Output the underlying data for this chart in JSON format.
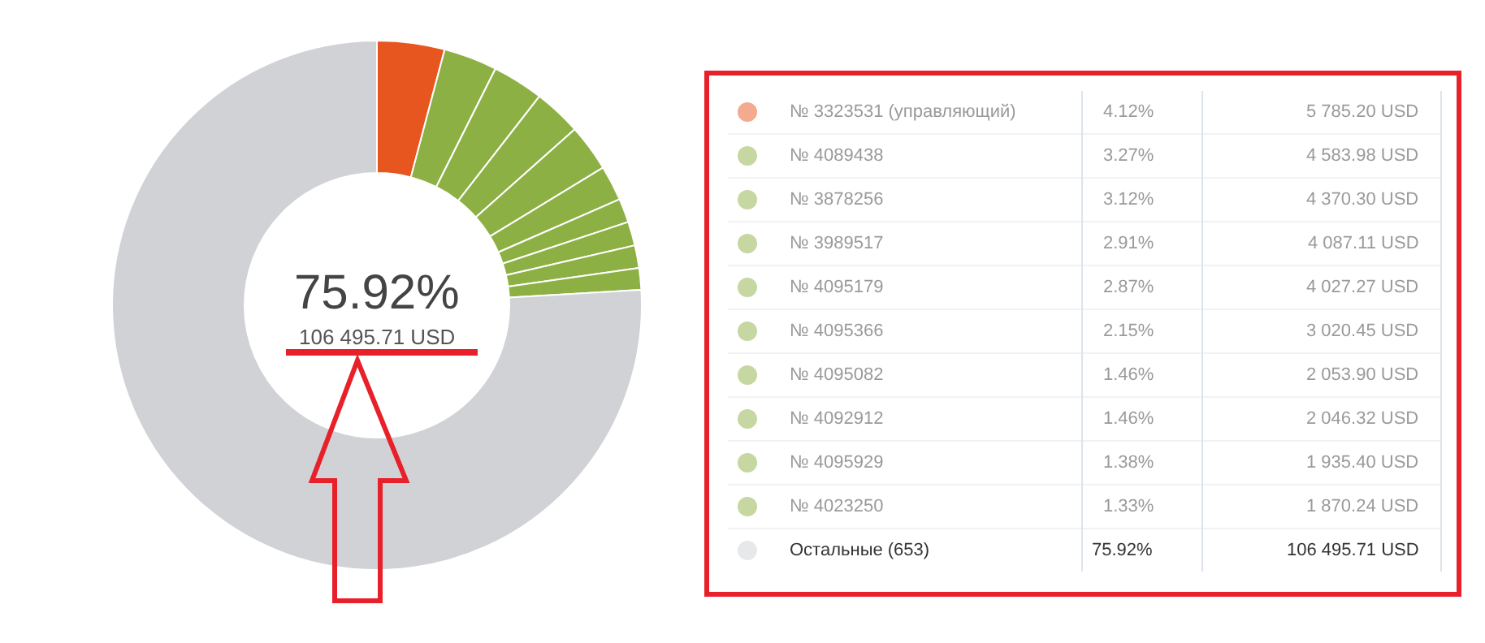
{
  "chart_data": {
    "type": "donut",
    "categories": [
      "№ 3323531 (управляющий)",
      "№ 4089438",
      "№ 3878256",
      "№ 3989517",
      "№ 4095179",
      "№ 4095366",
      "№ 4095082",
      "№ 4092912",
      "№ 4095929",
      "№ 4023250",
      "Остальные (653)"
    ],
    "values": [
      4.12,
      3.27,
      3.12,
      2.91,
      2.87,
      2.15,
      1.46,
      1.46,
      1.38,
      1.33,
      75.92
    ],
    "colors": [
      "#e8561f",
      "#8db045",
      "#8db045",
      "#8db045",
      "#8db045",
      "#8db045",
      "#8db045",
      "#8db045",
      "#8db045",
      "#8db045",
      "#d0d2d6"
    ],
    "value_labels": [
      "4.12%",
      "3.27%",
      "3.12%",
      "2.91%",
      "2.87%",
      "2.15%",
      "1.46%",
      "1.46%",
      "1.38%",
      "1.33%",
      "75.92%"
    ],
    "legend": "right",
    "annotations": [
      "75.92%",
      "106 495.71 USD",
      "5 785.20 USD",
      "4 583.98 USD",
      "4 370.30 USD",
      "4 087.11 USD",
      "4 027.27 USD",
      "3 020.45 USD",
      "2 053.90 USD",
      "2 046.32 USD",
      "1 935.40 USD",
      "1 870.24 USD",
      "106 495.71 USD"
    ]
  }
}
